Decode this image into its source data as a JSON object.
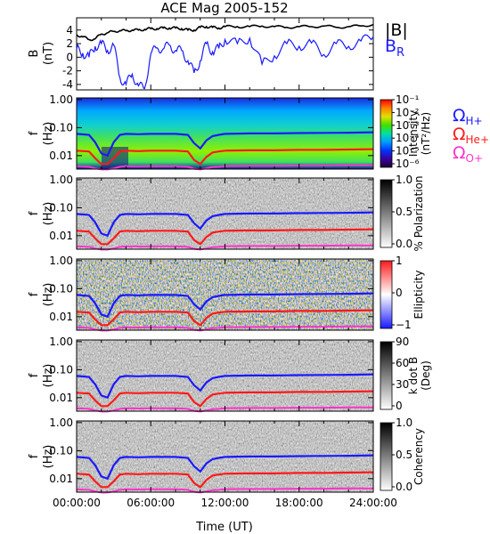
{
  "colors": {
    "magnitude": "#000000",
    "br": "#1a1aff",
    "h_plus": "#1a1aff",
    "he_plus": "#ff1a1a",
    "o_plus": "#ff33cc"
  },
  "chart_data": [
    {
      "type": "line",
      "title": "ACE Mag 2005-152",
      "ylabel_main": "B",
      "ylabel_unit": "(nT)",
      "yticks": [
        "4",
        "2",
        "0",
        "-2",
        "-4"
      ],
      "ylim": [
        -4.8,
        5.8
      ],
      "legend_b": "|B|",
      "legend_br": "B",
      "legend_br_sub": "R",
      "series": [
        {
          "key": "B",
          "x": [
            0,
            0.5,
            1,
            1.5,
            2,
            2.5,
            3,
            3.5,
            4,
            4.5,
            5,
            5.5,
            6,
            6.5,
            7,
            7.5,
            8,
            8.5,
            9,
            9.5,
            10,
            10.5,
            11,
            11.5,
            12,
            13,
            14,
            15,
            16,
            17,
            18,
            19,
            20,
            21,
            22,
            23,
            24
          ],
          "y": [
            3.3,
            3.0,
            2.6,
            2.7,
            3.4,
            3.6,
            3.8,
            3.9,
            3.9,
            4.0,
            4.0,
            4.1,
            4.2,
            4.2,
            4.3,
            4.3,
            4.3,
            4.2,
            4.0,
            4.0,
            4.4,
            4.5,
            4.4,
            4.3,
            4.5,
            4.5,
            4.5,
            4.6,
            4.5,
            4.4,
            4.5,
            4.5,
            4.6,
            4.4,
            4.5,
            4.6,
            4.8
          ]
        },
        {
          "key": "BR",
          "x": [
            0,
            0.5,
            1,
            1.5,
            2,
            2.5,
            3,
            3.5,
            4,
            4.5,
            5,
            5.5,
            6,
            6.5,
            7,
            7.5,
            8,
            8.5,
            9,
            9.5,
            10,
            10.5,
            11,
            11.5,
            12,
            13,
            14,
            15,
            16,
            17,
            18,
            19,
            20,
            21,
            22,
            23,
            24
          ],
          "y": [
            1.2,
            0.6,
            0.0,
            1.6,
            2.0,
            1.0,
            1.8,
            -3.0,
            -4.0,
            -2.5,
            -4.2,
            -4.6,
            0.5,
            1.4,
            1.2,
            1.8,
            1.0,
            1.0,
            -0.5,
            -2.3,
            -0.5,
            2.0,
            0.8,
            1.3,
            2.6,
            2.0,
            2.8,
            -1.0,
            0.2,
            2.0,
            1.6,
            2.1,
            0.4,
            2.0,
            1.6,
            2.4,
            3.0
          ]
        }
      ]
    },
    {
      "type": "heatmap",
      "ylabel_main": "f",
      "ylabel_unit": "(Hz)",
      "yticks": [
        "1.00",
        "0.10",
        "0.01"
      ],
      "colorbar_title": "Intensity",
      "colorbar_unit": "(nT²/Hz)",
      "colorbar_ticks": [
        "10⁻¹",
        "10⁻²",
        "10⁻³",
        "10⁻⁴",
        "10⁻⁵",
        "10⁻⁶"
      ],
      "legend": [
        {
          "label": "Ω",
          "sub": "H+"
        },
        {
          "label": "Ω",
          "sub": "He+"
        },
        {
          "label": "Ω",
          "sub": "O+"
        }
      ]
    },
    {
      "type": "heatmap",
      "ylabel_main": "f",
      "ylabel_unit": "(Hz)",
      "yticks": [
        "1.00",
        "0.10",
        "0.01"
      ],
      "colorbar_title": "% Polarization",
      "colorbar_ticks": [
        "1.0",
        "0.5",
        "0.0"
      ]
    },
    {
      "type": "heatmap",
      "ylabel_main": "f",
      "ylabel_unit": "(Hz)",
      "yticks": [
        "1.00",
        "0.10",
        "0.01"
      ],
      "colorbar_title": "Ellipticity",
      "colorbar_ticks": [
        "1",
        "0",
        "−1"
      ]
    },
    {
      "type": "heatmap",
      "ylabel_main": "f",
      "ylabel_unit": "(Hz)",
      "yticks": [
        "1.00",
        "0.10",
        "0.01"
      ],
      "colorbar_title": "k dot B",
      "colorbar_unit": "(Deg)",
      "colorbar_ticks": [
        "90",
        "60",
        "30",
        "0"
      ]
    },
    {
      "type": "heatmap",
      "ylabel_main": "f",
      "ylabel_unit": "(Hz)",
      "yticks": [
        "1.00",
        "0.10",
        "0.01"
      ],
      "colorbar_title": "Coherency",
      "colorbar_ticks": [
        "1.0",
        "0.5",
        "0.0"
      ]
    }
  ],
  "gyro_lines": {
    "x": [
      0,
      1,
      1.5,
      2,
      2.5,
      3,
      3.5,
      4,
      5,
      6,
      7,
      8,
      9,
      9.5,
      10,
      10.5,
      11,
      11.5,
      12,
      14,
      16,
      18,
      20,
      22,
      24
    ],
    "h_plus_hz": [
      0.06,
      0.055,
      0.03,
      0.012,
      0.01,
      0.03,
      0.055,
      0.06,
      0.058,
      0.06,
      0.06,
      0.06,
      0.055,
      0.028,
      0.018,
      0.035,
      0.05,
      0.055,
      0.06,
      0.062,
      0.062,
      0.064,
      0.065,
      0.066,
      0.068
    ],
    "he_plus_hz": [
      0.015,
      0.014,
      0.008,
      0.005,
      0.005,
      0.008,
      0.014,
      0.015,
      0.0145,
      0.015,
      0.015,
      0.015,
      0.014,
      0.007,
      0.005,
      0.009,
      0.013,
      0.014,
      0.015,
      0.0155,
      0.0155,
      0.016,
      0.016,
      0.0165,
      0.017
    ],
    "o_plus_hz": [
      0.0042,
      0.004,
      0.0035,
      0.0032,
      0.0032,
      0.0035,
      0.004,
      0.0042,
      0.0041,
      0.0042,
      0.0042,
      0.0042,
      0.004,
      0.0034,
      0.0032,
      0.0035,
      0.0039,
      0.004,
      0.0042,
      0.0043,
      0.0043,
      0.0044,
      0.0044,
      0.0045,
      0.0045
    ]
  },
  "x_axis": {
    "label": "Time (UT)",
    "ticks": [
      "00:00:00",
      "06:00:00",
      "12:00:00",
      "18:00:00",
      "24:00:00"
    ],
    "range_hours": [
      0,
      24
    ]
  }
}
